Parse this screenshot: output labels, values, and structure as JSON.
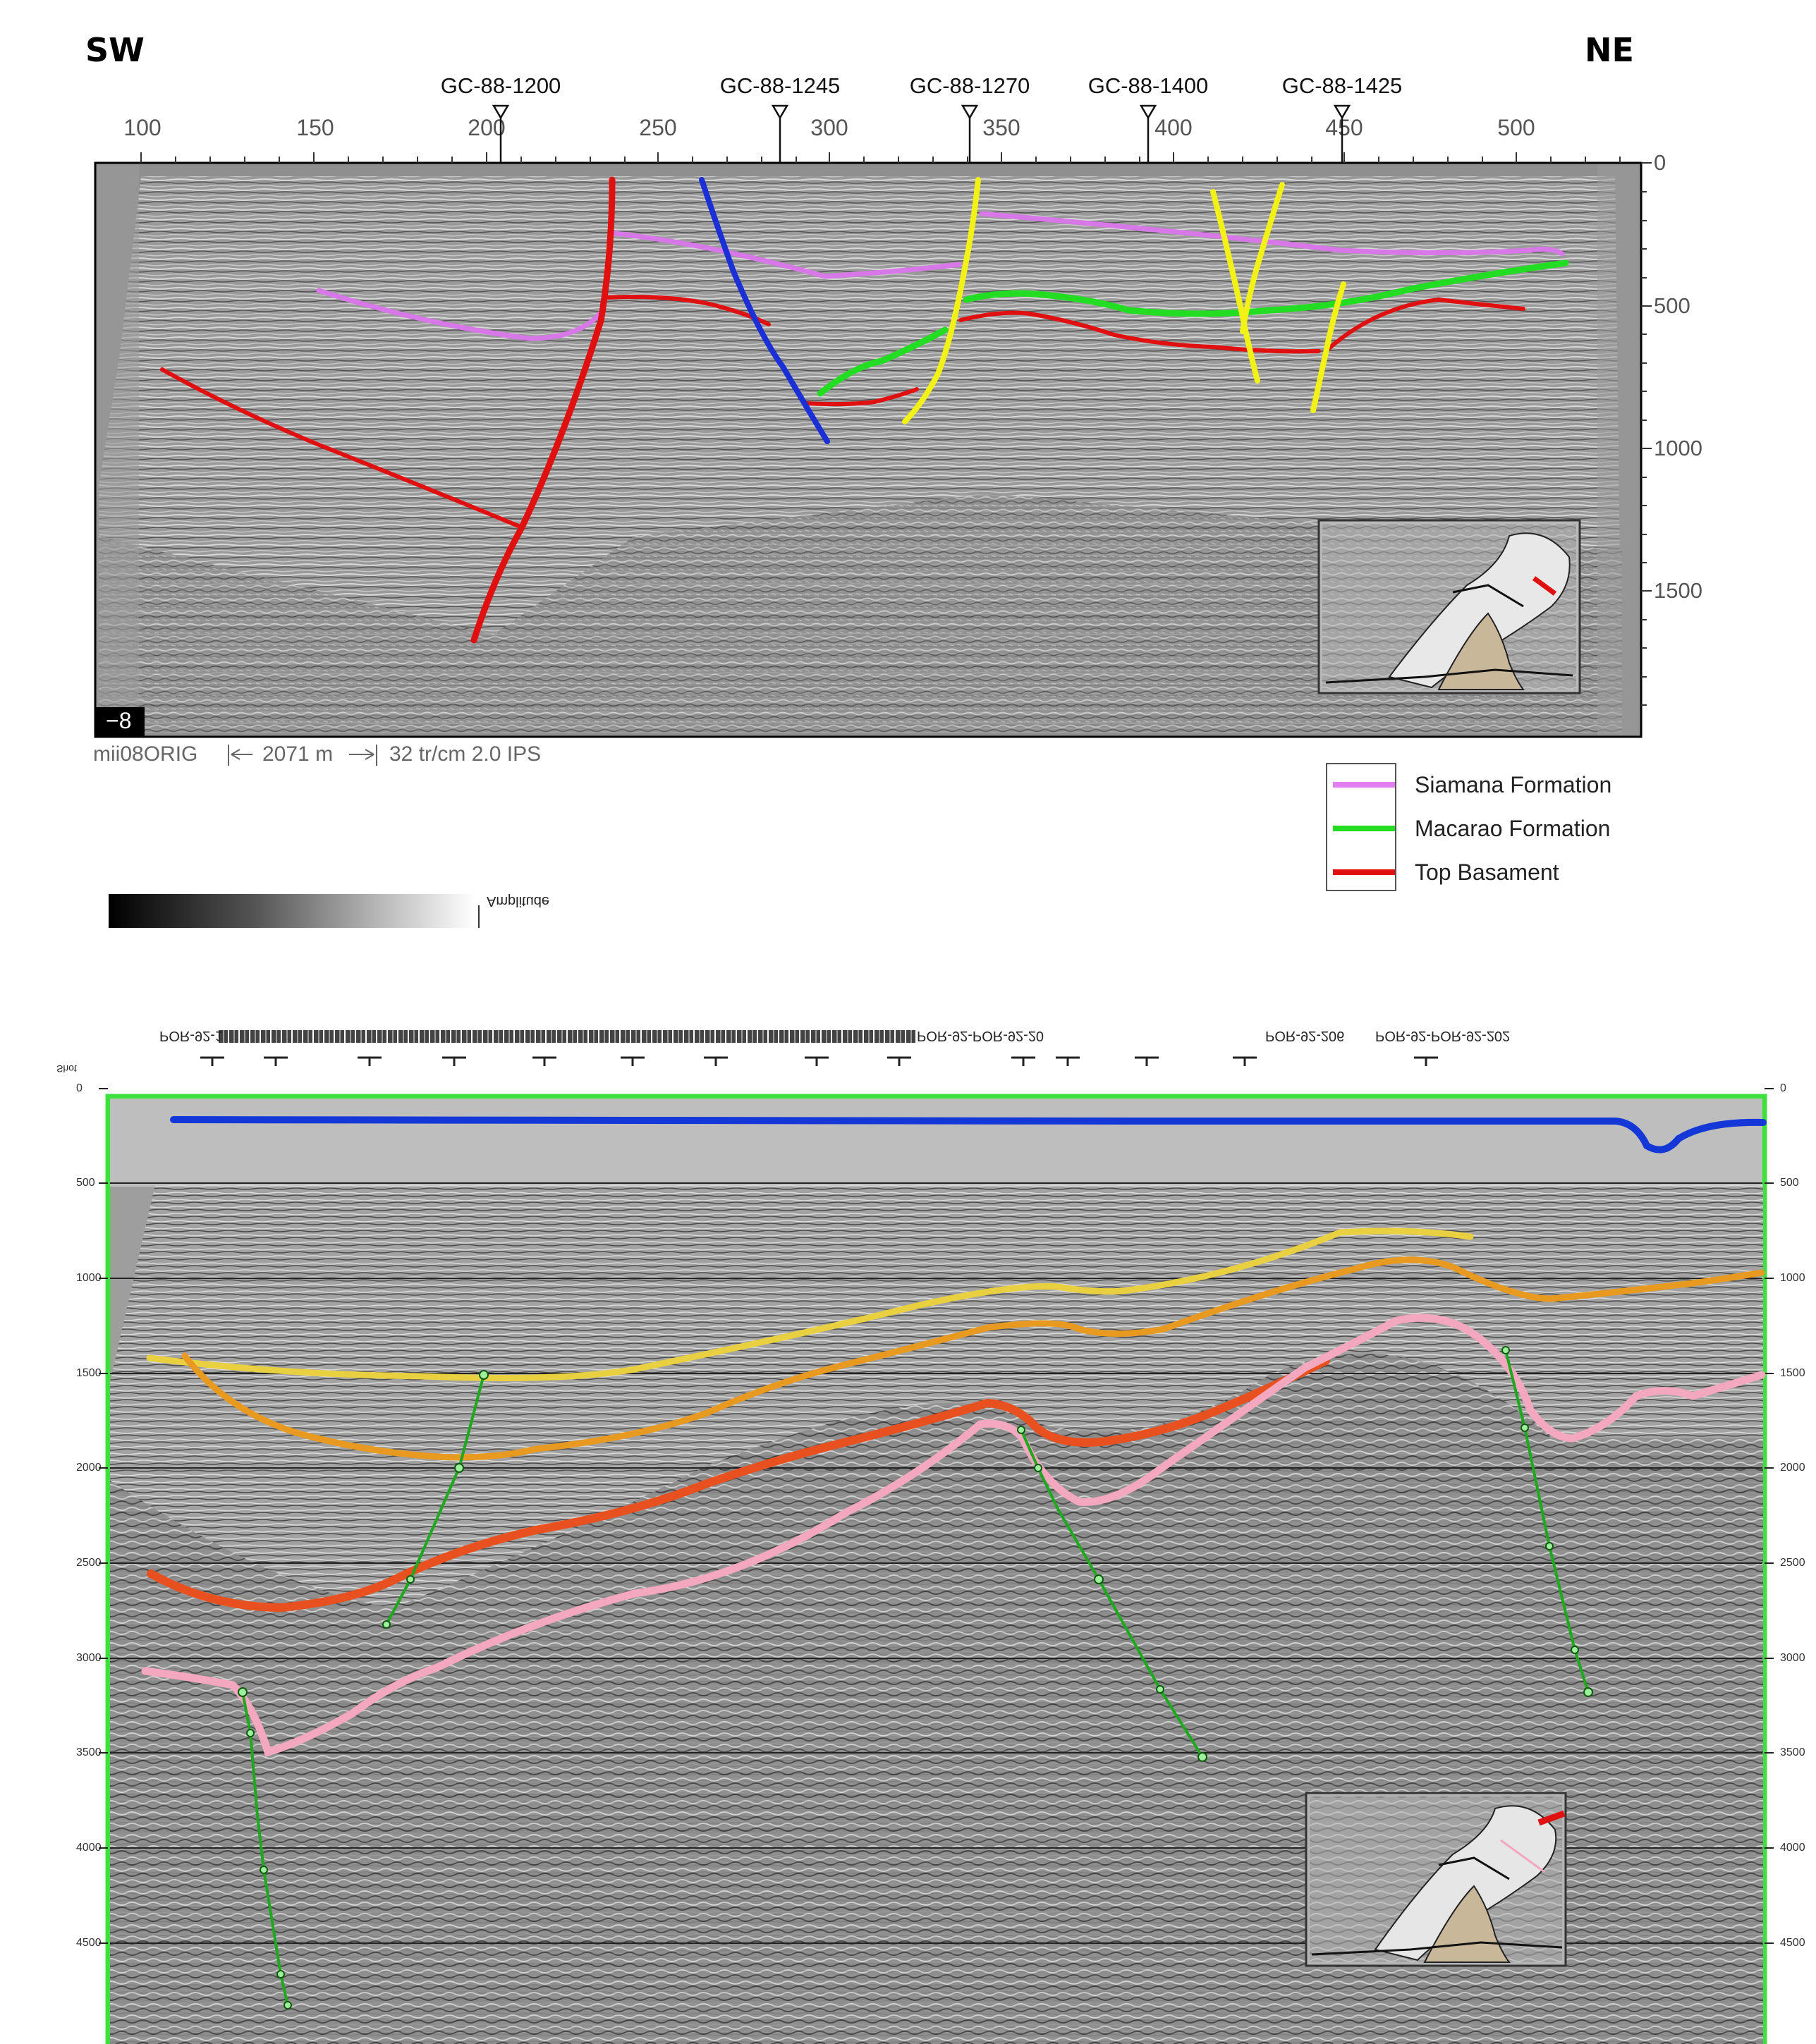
{
  "top_section": {
    "direction_left": "SW",
    "direction_right": "NE",
    "wells": [
      {
        "name": "GC-88-1200",
        "cdp": 204
      },
      {
        "name": "GC-88-1245",
        "cdp": 287
      },
      {
        "name": "GC-88-1270",
        "cdp": 342
      },
      {
        "name": "GC-88-1400",
        "cdp": 394
      },
      {
        "name": "GC-88-1425",
        "cdp": 451
      }
    ],
    "cdp_ticks": [
      "100",
      "150",
      "200",
      "250",
      "300",
      "350",
      "400",
      "450",
      "500"
    ],
    "twt_ticks": [
      "0",
      "500",
      "1000",
      "1500"
    ],
    "corner_label": "−8",
    "footer": {
      "line_name": "mii08ORIG",
      "scale_text": "2071 m",
      "params": "32 tr/cm  2.0  IPS"
    },
    "colors": {
      "siamana": "#e080f0",
      "macarao": "#22dd22",
      "basement": "#e01010",
      "fault_blue": "#1b2fd6",
      "fault_yellow": "#f2f217"
    }
  },
  "legend": {
    "items": [
      {
        "label": "Siamana Formation",
        "color": "#e080f0"
      },
      {
        "label": "Macarao Formation",
        "color": "#22dd22"
      },
      {
        "label": "Top Basament",
        "color": "#e01010"
      }
    ]
  },
  "colorbar": {
    "label": "Amplitude"
  },
  "bottom_section": {
    "header_left": "POR-92-1",
    "header_group_1": "POR-92-POR-92-20",
    "header_group_2": "POR-92-206",
    "header_group_3": "POR-92-POR-92-202",
    "shot_label": "Shot",
    "depth_ticks": [
      "0",
      "500",
      "1000",
      "1500",
      "2000",
      "2500",
      "3000",
      "3500",
      "4000",
      "4500"
    ],
    "colors": {
      "seafloor": "#1438d8",
      "horizon_yellow": "#e8d040",
      "horizon_orange": "#e89a20",
      "horizon_red": "#e85020",
      "horizon_pink": "#f4a8c0",
      "fault_green": "#1ea81e",
      "frame": "#3ee03e"
    }
  }
}
